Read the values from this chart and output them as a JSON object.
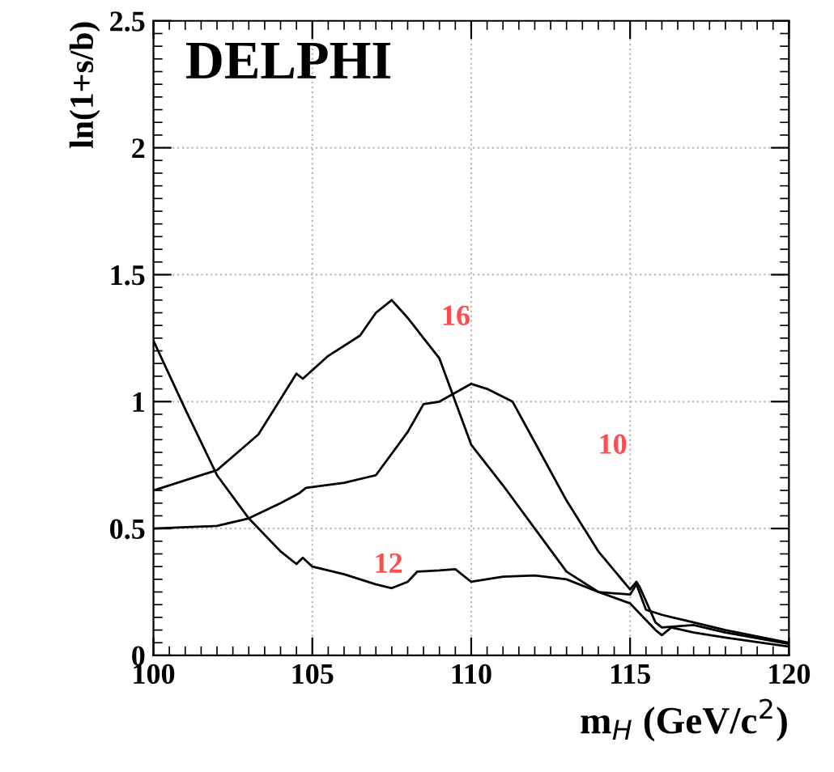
{
  "chart_data": {
    "type": "line",
    "title": "DELPHI",
    "xlabel": "m$_{H}$ (GeV/c$^{2}$)",
    "ylabel": "ln(1+s/b)",
    "xlim": [
      100,
      120
    ],
    "xticks": [
      100,
      105,
      110,
      115,
      120
    ],
    "ylim": [
      0,
      2.5
    ],
    "yticks": [
      0,
      0.5,
      1,
      1.5,
      2,
      2.5
    ],
    "grid": true,
    "marker": "none",
    "line_style": "solid",
    "series": [
      {
        "name": "16",
        "color": "#000000",
        "x": [
          100,
          102,
          103.3,
          104.5,
          104.7,
          105.5,
          106.5,
          107,
          107.5,
          108,
          108.5,
          109,
          110,
          111,
          112,
          113,
          114,
          115,
          115.8,
          116,
          116.3,
          117,
          118,
          120
        ],
        "values": [
          0.65,
          0.73,
          0.87,
          1.11,
          1.09,
          1.18,
          1.26,
          1.35,
          1.4,
          1.33,
          1.25,
          1.17,
          0.83,
          0.67,
          0.5,
          0.33,
          0.25,
          0.205,
          0.1,
          0.08,
          0.11,
          0.09,
          0.07,
          0.035
        ]
      },
      {
        "name": "10",
        "color": "#000000",
        "x": [
          100,
          102,
          103,
          104,
          104.6,
          104.8,
          106,
          107,
          108,
          108.5,
          109,
          110,
          110.5,
          111.3,
          112,
          113,
          114,
          115,
          115.2,
          115.3,
          115.8,
          116,
          117,
          118,
          120
        ],
        "values": [
          0.5,
          0.51,
          0.54,
          0.6,
          0.64,
          0.66,
          0.68,
          0.71,
          0.88,
          0.99,
          1.0,
          1.07,
          1.05,
          1.0,
          0.84,
          0.61,
          0.41,
          0.26,
          0.29,
          0.27,
          0.13,
          0.11,
          0.12,
          0.09,
          0.045
        ]
      },
      {
        "name": "12",
        "color": "#000000",
        "x": [
          100,
          101,
          102,
          103,
          104,
          104.5,
          104.7,
          105,
          106,
          107,
          107.5,
          108,
          108.3,
          109,
          109.5,
          110,
          111,
          112,
          113,
          114,
          115,
          115.2,
          115.5,
          116,
          117,
          118,
          120
        ],
        "values": [
          1.24,
          0.97,
          0.71,
          0.54,
          0.41,
          0.36,
          0.385,
          0.35,
          0.32,
          0.28,
          0.265,
          0.29,
          0.33,
          0.335,
          0.34,
          0.29,
          0.31,
          0.315,
          0.3,
          0.25,
          0.24,
          0.28,
          0.18,
          0.16,
          0.13,
          0.1,
          0.05
        ]
      }
    ]
  }
}
